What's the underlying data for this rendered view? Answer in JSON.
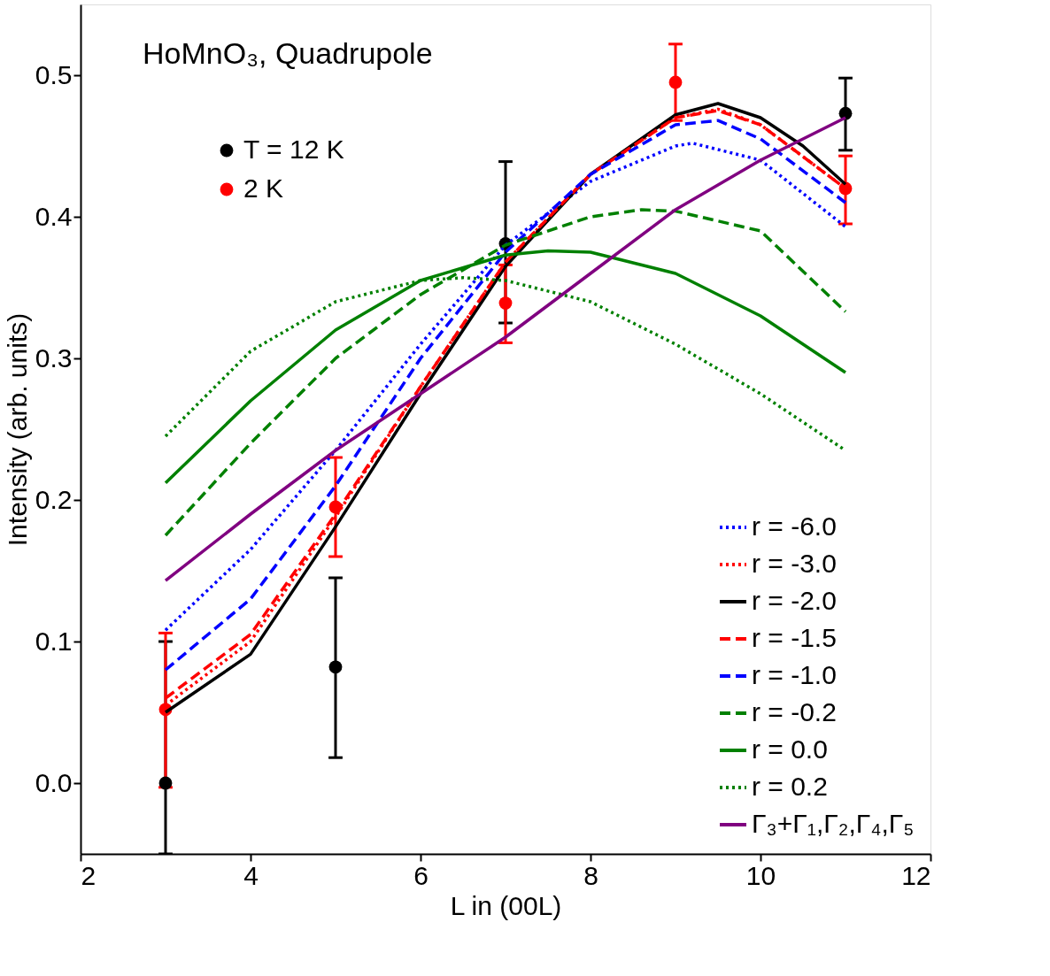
{
  "chart_data": {
    "type": "line",
    "xlabel": "L in (00L)",
    "ylabel": "Intensity (arb. units)",
    "annotations": [
      "HoMnO₃, Quadrupole"
    ],
    "xlim": [
      2,
      12
    ],
    "ylim": [
      -0.05,
      0.55
    ],
    "xticks": [
      2,
      4,
      6,
      8,
      10,
      12
    ],
    "yticks": [
      {
        "value": 0,
        "label": "0.0"
      },
      0.1,
      0.2,
      0.3,
      0.4,
      0.5
    ],
    "grid": false,
    "legend": "bottom right",
    "series": [
      {
        "name": "T = 12 K",
        "type": "scatter",
        "marker": "circle",
        "color": "#000000",
        "x": [
          3,
          5,
          7,
          9,
          11
        ],
        "values": [
          0.0,
          0.082,
          0.381,
          null,
          0.473
        ],
        "errors": [
          [
            -0.05,
            0.1
          ],
          [
            0.018,
            0.145
          ],
          [
            0.325,
            0.439
          ],
          null,
          [
            0.447,
            0.498
          ]
        ]
      },
      {
        "name": "2 K",
        "type": "scatter",
        "marker": "circle",
        "color": "#ff0000",
        "x": [
          3,
          5,
          7,
          9,
          11
        ],
        "values": [
          0.052,
          0.195,
          0.339,
          0.495,
          0.42
        ],
        "errors": [
          [
            -0.003,
            0.106
          ],
          [
            0.16,
            0.23
          ],
          [
            0.311,
            0.366
          ],
          [
            0.468,
            0.522
          ],
          [
            0.395,
            0.443
          ]
        ]
      },
      {
        "name": "r = -6.0",
        "line_style": "dotted",
        "color": "#0000ff",
        "x": [
          3,
          4,
          5,
          6,
          7,
          8,
          9,
          9.2,
          10,
          11
        ],
        "values": [
          0.108,
          0.165,
          0.235,
          0.31,
          0.38,
          0.425,
          0.45,
          0.452,
          0.44,
          0.393
        ]
      },
      {
        "name": "r = -3.0",
        "line_style": "dotted",
        "color": "#ff0000",
        "x": [
          3,
          4,
          5,
          6,
          7,
          8,
          9,
          9.5,
          10,
          11
        ],
        "values": [
          0.055,
          0.1,
          0.188,
          0.28,
          0.368,
          0.43,
          0.47,
          0.476,
          0.465,
          0.42
        ]
      },
      {
        "name": "r = -2.0",
        "line_style": "solid",
        "color": "#000000",
        "x": [
          3,
          4,
          5,
          6,
          7,
          8,
          9,
          9.5,
          10,
          10.5,
          11
        ],
        "values": [
          0.05,
          0.091,
          0.181,
          0.275,
          0.365,
          0.43,
          0.472,
          0.48,
          0.47,
          0.45,
          0.423
        ]
      },
      {
        "name": "r = -1.5",
        "line_style": "dashed",
        "color": "#ff0000",
        "x": [
          3,
          4,
          5,
          6,
          7,
          8,
          9,
          9.5,
          10,
          11
        ],
        "values": [
          0.06,
          0.105,
          0.19,
          0.28,
          0.368,
          0.43,
          0.47,
          0.475,
          0.465,
          0.42
        ]
      },
      {
        "name": "r = -1.0",
        "line_style": "dashed",
        "color": "#0000ff",
        "x": [
          3,
          4,
          5,
          6,
          7,
          8,
          9,
          9.5,
          10,
          11
        ],
        "values": [
          0.08,
          0.13,
          0.21,
          0.3,
          0.375,
          0.43,
          0.465,
          0.468,
          0.455,
          0.41
        ]
      },
      {
        "name": "r = -0.2",
        "line_style": "dashed",
        "color": "#008000",
        "x": [
          3,
          4,
          5,
          6,
          7,
          8,
          8.6,
          9,
          10,
          11
        ],
        "values": [
          0.175,
          0.24,
          0.3,
          0.345,
          0.38,
          0.4,
          0.405,
          0.404,
          0.39,
          0.333
        ]
      },
      {
        "name": "r =  0.0",
        "line_style": "solid",
        "color": "#008000",
        "x": [
          3,
          4,
          5,
          6,
          7,
          7.5,
          8,
          9,
          10,
          11
        ],
        "values": [
          0.212,
          0.27,
          0.32,
          0.355,
          0.373,
          0.376,
          0.375,
          0.36,
          0.33,
          0.29
        ]
      },
      {
        "name": "r =  0.2",
        "line_style": "dotted",
        "color": "#008000",
        "x": [
          3,
          4,
          5,
          6,
          6.5,
          7,
          8,
          9,
          10,
          11
        ],
        "values": [
          0.245,
          0.305,
          0.34,
          0.355,
          0.357,
          0.355,
          0.34,
          0.31,
          0.275,
          0.235
        ]
      },
      {
        "name": "Γ₃+Γ₁,Γ₂,Γ₄,Γ₅",
        "line_style": "solid",
        "color": "#800080",
        "x": [
          3,
          4,
          5,
          6,
          7,
          8,
          9,
          10,
          11
        ],
        "values": [
          0.143,
          0.19,
          0.235,
          0.275,
          0.315,
          0.36,
          0.405,
          0.44,
          0.47
        ]
      }
    ]
  }
}
